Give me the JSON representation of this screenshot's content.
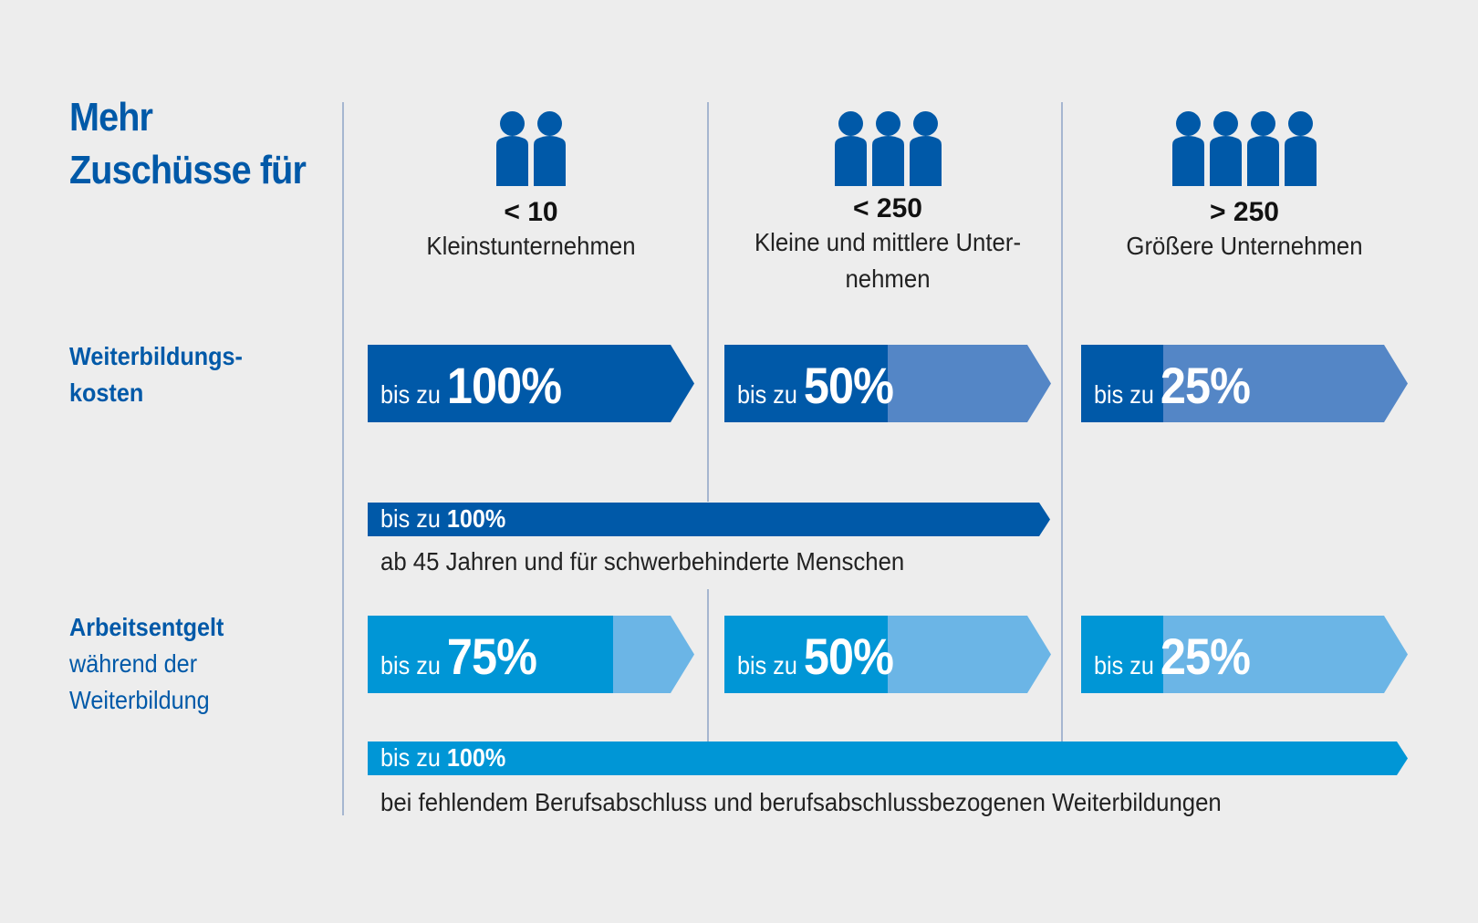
{
  "title": {
    "line1": "Mehr",
    "line2": "Zuschüsse für"
  },
  "rows": {
    "weiterbildungskosten": {
      "line1": "Weiterbildungs-",
      "line2": "kosten"
    },
    "arbeitsentgelt": {
      "line1": "Arbeitsentgelt",
      "line2": "während der",
      "line3": "Weiterbildung"
    }
  },
  "columns": [
    {
      "count": "< 10",
      "name": "Kleinstunternehmen",
      "name2": "",
      "people": 2
    },
    {
      "count": "< 250",
      "name": "Kleine und mittlere Unter-",
      "name2": "nehmen",
      "people": 3
    },
    {
      "count": "> 250",
      "name": "Größere Unternehmen",
      "name2": "",
      "people": 4
    }
  ],
  "prefix": "bis zu",
  "kosten": [
    {
      "pct": "100%",
      "share": 1.0
    },
    {
      "pct": "50%",
      "share": 0.5
    },
    {
      "pct": "25%",
      "share": 0.25
    }
  ],
  "kosten_extra": {
    "pct": "100%",
    "note": "ab 45 Jahren und für schwerbehinderte Menschen"
  },
  "entgelt": [
    {
      "pct": "75%",
      "share": 0.75
    },
    {
      "pct": "50%",
      "share": 0.5
    },
    {
      "pct": "25%",
      "share": 0.25
    }
  ],
  "entgelt_extra": {
    "pct": "100%",
    "note": "bei fehlendem Berufsabschluss und berufsabschlussbezogenen Weiterbildungen"
  },
  "colors": {
    "dark_blue": "#0059a8",
    "mid_blue": "#5486c6",
    "cyan": "#0096d6",
    "light_cyan": "#6bb5e6"
  }
}
